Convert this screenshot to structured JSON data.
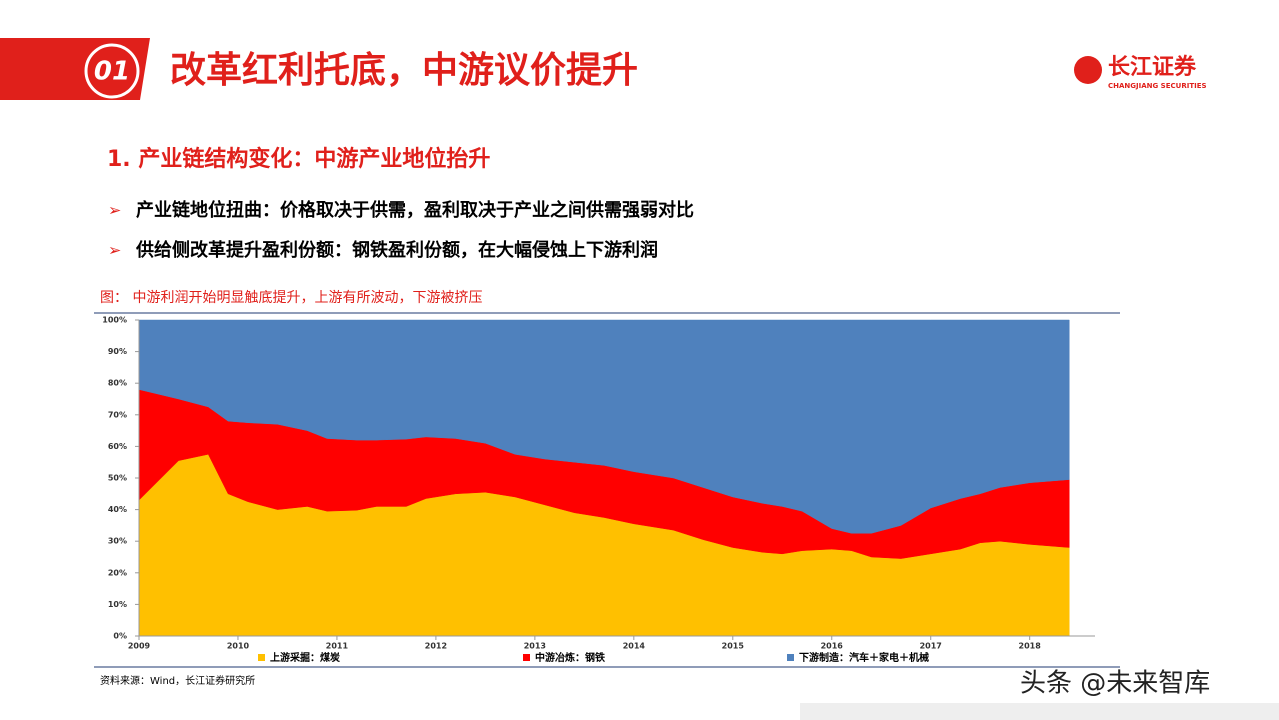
{
  "header": {
    "number": "01",
    "title": "改革红利托底，中游议价提升"
  },
  "logo": {
    "name": "长江证券",
    "subtitle": "CHANGJIANG SECURITIES"
  },
  "section": {
    "title": "1. 产业链结构变化：中游产业地位抬升"
  },
  "bullets": [
    "产业链地位扭曲：价格取决于供需，盈利取决于产业之间供需强弱对比",
    "供给侧改革提升盈利份额：钢铁盈利份额，在大幅侵蚀上下游利润"
  ],
  "chart_data": {
    "type": "stacked-area",
    "title": "图： 中游利润开始明显触底提升，上游有所波动，下游被挤压",
    "x": [
      2009.0,
      2009.4,
      2009.7,
      2009.9,
      2010.1,
      2010.4,
      2010.7,
      2010.9,
      2011.2,
      2011.4,
      2011.7,
      2011.9,
      2012.2,
      2012.5,
      2012.8,
      2013.1,
      2013.4,
      2013.7,
      2014.0,
      2014.4,
      2014.7,
      2015.0,
      2015.3,
      2015.5,
      2015.7,
      2016.0,
      2016.2,
      2016.4,
      2016.7,
      2017.0,
      2017.3,
      2017.5,
      2017.7,
      2018.0,
      2018.4
    ],
    "series": [
      {
        "name": "上游采掘：煤炭",
        "color": "#FFC000",
        "values": [
          43,
          55.5,
          57.5,
          45,
          42.5,
          40,
          41,
          39.5,
          39.8,
          41,
          41,
          43.5,
          45,
          45.5,
          44,
          41.5,
          39,
          37.5,
          35.5,
          33.5,
          30.5,
          28,
          26.5,
          26,
          27,
          27.5,
          27,
          25,
          24.5,
          26,
          27.5,
          29.5,
          30,
          29,
          28
        ]
      },
      {
        "name": "中游冶炼：钢铁",
        "color": "#FF0000",
        "values": [
          35,
          19.5,
          15,
          23,
          25,
          27,
          24,
          23,
          22.2,
          21,
          21.3,
          19.5,
          17.5,
          15.5,
          13.5,
          14.5,
          16,
          16.5,
          16.5,
          16.5,
          16.5,
          16,
          15.5,
          15,
          12.5,
          6.5,
          5.5,
          7.5,
          10.5,
          14.5,
          16,
          15.5,
          17,
          19.5,
          21.5
        ]
      },
      {
        "name": "下游制造：汽车＋家电＋机械",
        "color": "#4F81BD",
        "values": [
          22,
          25,
          27.5,
          32,
          32.5,
          33,
          35,
          37.5,
          38,
          38,
          37.7,
          37,
          37.5,
          39,
          42.5,
          44,
          45,
          46,
          48,
          50,
          53,
          56,
          58,
          59,
          60.5,
          66,
          67.5,
          67.5,
          65,
          59.5,
          56.5,
          55,
          53,
          51.5,
          50.5
        ]
      }
    ],
    "xlim": [
      2009,
      2018.66
    ],
    "xticks": [
      2009,
      2010,
      2011,
      2012,
      2013,
      2014,
      2015,
      2016,
      2017,
      2018
    ],
    "ylim": [
      0,
      100
    ],
    "yticks": [
      {
        "value": 0,
        "label": "0%"
      },
      {
        "value": 10,
        "label": "10%"
      },
      {
        "value": 20,
        "label": "20%"
      },
      {
        "value": 30,
        "label": "30%"
      },
      {
        "value": 40,
        "label": "40%"
      },
      {
        "value": 50,
        "label": "50%"
      },
      {
        "value": 60,
        "label": "60%"
      },
      {
        "value": 70,
        "label": "70%"
      },
      {
        "value": 80,
        "label": "80%"
      },
      {
        "value": 90,
        "label": "90%"
      },
      {
        "value": 100,
        "label": "100%"
      }
    ]
  },
  "source": "资料来源：Wind，长江证券研究所",
  "watermark": "头条 @未来智库"
}
